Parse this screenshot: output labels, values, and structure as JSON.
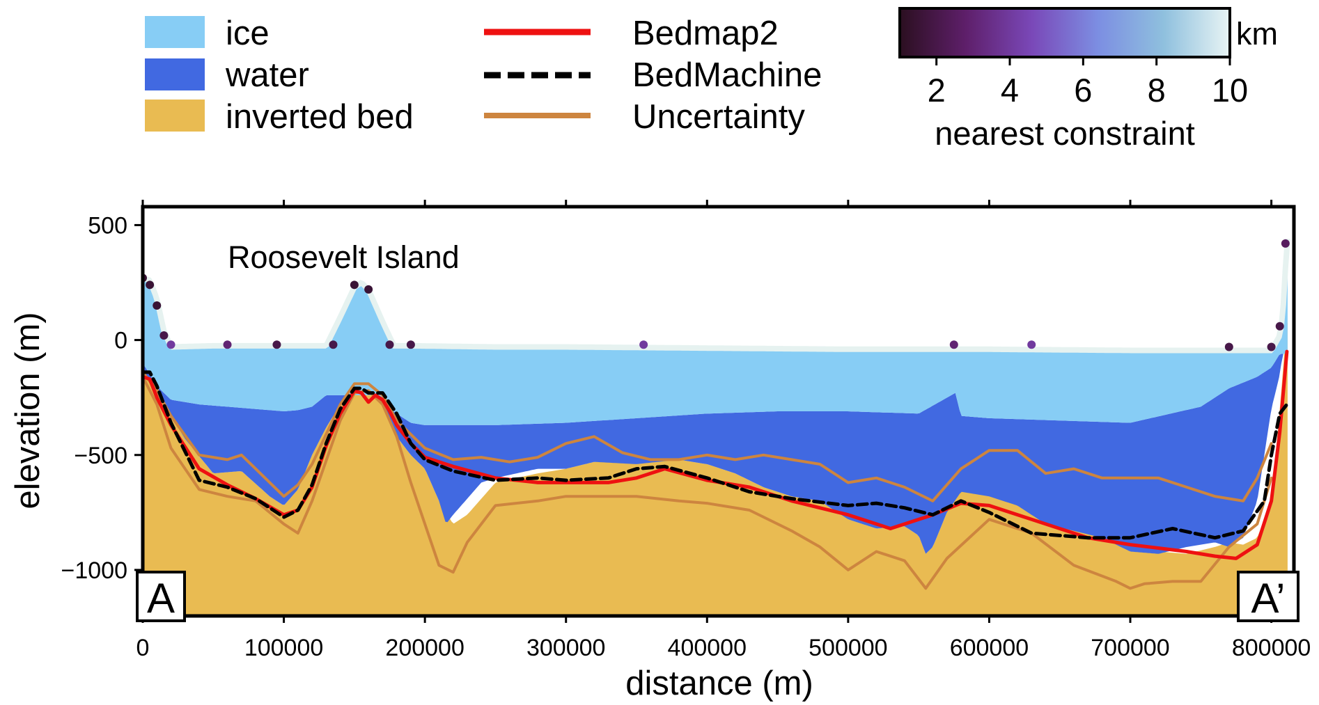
{
  "legend": {
    "fills": [
      {
        "label": "ice",
        "color": "#87cdf5"
      },
      {
        "label": "water",
        "color": "#4169e1"
      },
      {
        "label": "inverted bed",
        "color": "#e9bb52"
      }
    ],
    "lines": [
      {
        "label": "Bedmap2",
        "color": "#ee1111",
        "style": "solid"
      },
      {
        "label": "BedMachine",
        "color": "#000000",
        "style": "dashed"
      },
      {
        "label": "Uncertainty",
        "color": "#cd853f",
        "style": "solid"
      }
    ]
  },
  "colorbar": {
    "unit": "km",
    "label": "nearest constraint",
    "ticks": [
      "2",
      "4",
      "6",
      "8",
      "10"
    ],
    "range": [
      1,
      10
    ],
    "colors": [
      "#2b0f20",
      "#5e1f6a",
      "#7a48b8",
      "#7c8ee2",
      "#8fc0de",
      "#e8f4f4"
    ]
  },
  "chart_data": {
    "type": "area",
    "xlabel": "distance (m)",
    "ylabel": "elevation (m)",
    "xlim": [
      0,
      816000
    ],
    "ylim": [
      -1200,
      580
    ],
    "xticks": [
      "0",
      "100000",
      "200000",
      "300000",
      "400000",
      "500000",
      "600000",
      "700000",
      "800000"
    ],
    "yticks": [
      "500",
      "0",
      "−500",
      "−1000"
    ],
    "annotations": [
      "Roosevelt Island"
    ],
    "profile_labels": [
      "A",
      "A’"
    ],
    "surface": {
      "x": [
        0,
        5000,
        10000,
        15000,
        20000,
        50000,
        100000,
        130000,
        140000,
        150000,
        155000,
        160000,
        170000,
        178000,
        190000,
        250000,
        300000,
        400000,
        500000,
        550000,
        600000,
        700000,
        780000,
        800000,
        806000,
        808000,
        811000,
        813000
      ],
      "y": [
        270,
        260,
        180,
        40,
        -30,
        -25,
        -25,
        -25,
        100,
        230,
        250,
        220,
        80,
        -25,
        -25,
        -30,
        -30,
        -35,
        -40,
        -40,
        -40,
        -45,
        -45,
        -45,
        20,
        100,
        420,
        500
      ]
    },
    "ice_base": {
      "x": [
        0,
        10000,
        20000,
        40000,
        60000,
        80000,
        100000,
        110000,
        120000,
        130000,
        150000,
        165000,
        175000,
        190000,
        200000,
        250000,
        300000,
        350000,
        400000,
        450000,
        500000,
        550000,
        576000,
        580000,
        600000,
        650000,
        700000,
        750000,
        770000,
        790000,
        800000,
        806000
      ],
      "y": [
        -100,
        -200,
        -260,
        -280,
        -290,
        -300,
        -310,
        -305,
        -290,
        -240,
        -240,
        -240,
        -300,
        -360,
        -370,
        -370,
        -360,
        -340,
        -320,
        -310,
        -310,
        -320,
        -230,
        -330,
        -340,
        -350,
        -360,
        -290,
        -210,
        -160,
        -120,
        -60
      ]
    },
    "water_base": {
      "x": [
        0,
        10000,
        20000,
        30000,
        50000,
        70000,
        90000,
        100000,
        110000,
        120000,
        130000,
        140000,
        150000,
        160000,
        170000,
        180000,
        190000,
        200000,
        210000,
        215000,
        220000,
        240000,
        250000,
        280000,
        300000,
        320000,
        350000,
        380000,
        400000,
        420000,
        440000,
        460000,
        480000,
        500000,
        520000,
        540000,
        550000,
        555000,
        560000,
        570000,
        580000,
        600000,
        620000,
        640000,
        660000,
        680000,
        700000,
        720000,
        740000,
        760000,
        770000,
        780000,
        790000,
        800000,
        806000,
        811000
      ],
      "y": [
        -150,
        -200,
        -330,
        -430,
        -580,
        -570,
        -680,
        -720,
        -650,
        -500,
        -380,
        -280,
        -210,
        -210,
        -290,
        -420,
        -500,
        -560,
        -700,
        -800,
        -760,
        -620,
        -600,
        -560,
        -560,
        -530,
        -540,
        -520,
        -540,
        -580,
        -640,
        -680,
        -700,
        -780,
        -820,
        -810,
        -850,
        -930,
        -900,
        -750,
        -660,
        -680,
        -720,
        -800,
        -830,
        -860,
        -920,
        -930,
        -900,
        -880,
        -900,
        -860,
        -700,
        -300,
        -150,
        80
      ]
    },
    "inverted_bed": {
      "x": [
        0,
        10000,
        20000,
        30000,
        50000,
        70000,
        90000,
        100000,
        110000,
        120000,
        130000,
        140000,
        150000,
        160000,
        170000,
        180000,
        190000,
        200000,
        210000,
        220000,
        230000,
        250000,
        280000,
        300000,
        320000,
        350000,
        380000,
        400000,
        420000,
        440000,
        460000,
        480000,
        500000,
        520000,
        540000,
        550000,
        555000,
        560000,
        570000,
        580000,
        600000,
        620000,
        640000,
        660000,
        680000,
        700000,
        720000,
        740000,
        760000,
        770000,
        780000,
        790000,
        800000,
        806000,
        811000
      ],
      "y": [
        -150,
        -200,
        -330,
        -430,
        -580,
        -570,
        -680,
        -720,
        -650,
        -500,
        -380,
        -280,
        -210,
        -210,
        -290,
        -420,
        -500,
        -560,
        -700,
        -800,
        -760,
        -620,
        -580,
        -560,
        -530,
        -520,
        -520,
        -540,
        -580,
        -640,
        -680,
        -700,
        -780,
        -820,
        -810,
        -850,
        -930,
        -900,
        -750,
        -600,
        -570,
        -600,
        -720,
        -800,
        -830,
        -860,
        -920,
        -930,
        -900,
        -880,
        -890,
        -860,
        -700,
        -300,
        80
      ]
    },
    "series": [
      {
        "name": "Bedmap2",
        "x": [
          0,
          5000,
          10000,
          20000,
          40000,
          60000,
          80000,
          100000,
          110000,
          120000,
          130000,
          140000,
          150000,
          155000,
          160000,
          165000,
          170000,
          175000,
          180000,
          190000,
          200000,
          220000,
          250000,
          280000,
          300000,
          330000,
          350000,
          370000,
          400000,
          430000,
          460000,
          500000,
          530000,
          560000,
          580000,
          600000,
          630000,
          670000,
          700000,
          740000,
          760000,
          775000,
          790000,
          800000,
          806000,
          811000
        ],
        "y": [
          -160,
          -170,
          -250,
          -370,
          -560,
          -630,
          -690,
          -760,
          -740,
          -640,
          -460,
          -320,
          -220,
          -230,
          -270,
          -240,
          -260,
          -310,
          -370,
          -450,
          -510,
          -550,
          -600,
          -620,
          -620,
          -620,
          -600,
          -560,
          -610,
          -640,
          -700,
          -760,
          -820,
          -760,
          -710,
          -720,
          -780,
          -860,
          -890,
          -920,
          -940,
          -950,
          -890,
          -700,
          -400,
          -50
        ]
      },
      {
        "name": "BedMachine",
        "x": [
          0,
          5000,
          10000,
          20000,
          40000,
          60000,
          80000,
          100000,
          110000,
          120000,
          130000,
          140000,
          150000,
          155000,
          160000,
          170000,
          180000,
          190000,
          200000,
          220000,
          250000,
          280000,
          300000,
          330000,
          350000,
          370000,
          400000,
          430000,
          460000,
          500000,
          520000,
          540000,
          560000,
          580000,
          600000,
          630000,
          670000,
          700000,
          730000,
          760000,
          780000,
          795000,
          800000,
          806000,
          811000
        ],
        "y": [
          -140,
          -140,
          -200,
          -360,
          -610,
          -640,
          -690,
          -770,
          -740,
          -630,
          -450,
          -300,
          -210,
          -210,
          -230,
          -230,
          -320,
          -450,
          -520,
          -570,
          -610,
          -600,
          -610,
          -600,
          -560,
          -550,
          -600,
          -660,
          -690,
          -720,
          -710,
          -730,
          -760,
          -700,
          -750,
          -840,
          -860,
          -860,
          -820,
          -860,
          -830,
          -700,
          -500,
          -320,
          -280
        ]
      },
      {
        "name": "Uncertainty (upper)",
        "x": [
          0,
          10000,
          20000,
          40000,
          60000,
          70000,
          80000,
          100000,
          110000,
          120000,
          140000,
          150000,
          160000,
          170000,
          180000,
          200000,
          220000,
          240000,
          260000,
          280000,
          300000,
          320000,
          340000,
          360000,
          380000,
          400000,
          420000,
          440000,
          460000,
          480000,
          500000,
          520000,
          540000,
          560000,
          580000,
          600000,
          620000,
          640000,
          660000,
          680000,
          700000,
          720000,
          740000,
          760000,
          780000,
          790000,
          800000
        ],
        "y": [
          -140,
          -220,
          -330,
          -500,
          -520,
          -500,
          -560,
          -680,
          -630,
          -540,
          -280,
          -190,
          -190,
          -240,
          -350,
          -470,
          -520,
          -510,
          -530,
          -510,
          -450,
          -420,
          -490,
          -520,
          -520,
          -500,
          -520,
          -500,
          -520,
          -540,
          -620,
          -600,
          -640,
          -700,
          -560,
          -480,
          -480,
          -580,
          -560,
          -600,
          -600,
          -600,
          -640,
          -680,
          -700,
          -600,
          -450
        ]
      },
      {
        "name": "Uncertainty (lower)",
        "x": [
          0,
          10000,
          20000,
          40000,
          60000,
          80000,
          100000,
          110000,
          120000,
          140000,
          150000,
          160000,
          170000,
          180000,
          190000,
          200000,
          210000,
          220000,
          230000,
          250000,
          280000,
          300000,
          330000,
          350000,
          380000,
          400000,
          430000,
          460000,
          480000,
          500000,
          520000,
          540000,
          555000,
          570000,
          600000,
          630000,
          660000,
          690000,
          700000,
          710000,
          730000,
          750000,
          770000,
          790000,
          800000
        ],
        "y": [
          -160,
          -280,
          -470,
          -650,
          -680,
          -700,
          -800,
          -840,
          -700,
          -350,
          -230,
          -220,
          -280,
          -420,
          -620,
          -800,
          -980,
          -1010,
          -880,
          -720,
          -700,
          -680,
          -680,
          -680,
          -700,
          -710,
          -740,
          -830,
          -900,
          -1000,
          -920,
          -960,
          -1080,
          -950,
          -780,
          -840,
          -980,
          -1050,
          -1080,
          -1060,
          -1050,
          -1050,
          -900,
          -800,
          -600
        ]
      }
    ],
    "constraint_points": {
      "x": [
        0,
        5000,
        10000,
        15000,
        20000,
        60000,
        95000,
        135000,
        150000,
        160000,
        175000,
        190000,
        355000,
        575000,
        630000,
        770000,
        800000,
        806000,
        810000
      ],
      "y": [
        270,
        240,
        150,
        20,
        -20,
        -20,
        -20,
        -20,
        240,
        220,
        -20,
        -20,
        -20,
        -20,
        -20,
        -30,
        -30,
        60,
        420
      ],
      "distance_km": [
        1.5,
        1.5,
        1.5,
        2,
        4,
        3,
        2,
        2,
        1.5,
        1.5,
        2,
        2,
        4,
        3,
        4,
        2,
        2,
        2,
        2.5
      ]
    }
  }
}
